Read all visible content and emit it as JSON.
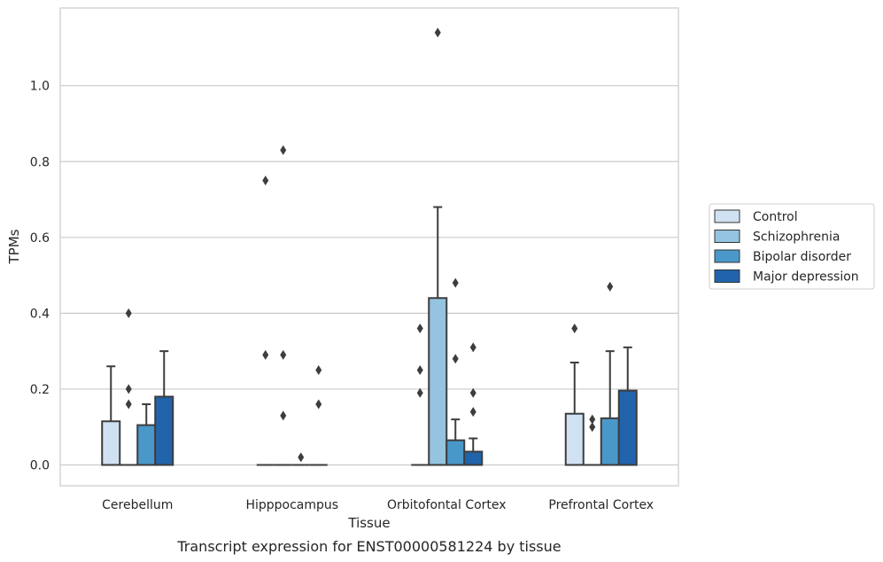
{
  "caption": "Transcript expression for ENST00000581224 by tissue",
  "chart_data": {
    "type": "box",
    "xlabel": "Tissue",
    "ylabel": "TPMs",
    "ylim": [
      -0.055,
      1.205
    ],
    "yticks": [
      "0.0",
      "0.2",
      "0.4",
      "0.6",
      "0.8",
      "1.0"
    ],
    "grid": "horizontal",
    "legend_position": "right",
    "categories": [
      "Cerebellum",
      "Hipppocampus",
      "Orbitofontal Cortex",
      "Prefrontal Cortex"
    ],
    "series": [
      {
        "name": "Control",
        "color": "#d0e1f2",
        "boxes": [
          {
            "q1": 0.0,
            "median": 0.0,
            "q3": 0.115,
            "whisker_low": 0.0,
            "whisker_high": 0.26,
            "outliers": []
          },
          {
            "q1": 0.0,
            "median": 0.0,
            "q3": 0.0,
            "whisker_low": 0.0,
            "whisker_high": 0.0,
            "outliers": [
              0.29,
              0.75
            ]
          },
          {
            "q1": 0.0,
            "median": 0.0,
            "q3": 0.0,
            "whisker_low": 0.0,
            "whisker_high": 0.0,
            "outliers": [
              0.19,
              0.25,
              0.36
            ]
          },
          {
            "q1": 0.0,
            "median": 0.0,
            "q3": 0.135,
            "whisker_low": 0.0,
            "whisker_high": 0.27,
            "outliers": [
              0.36
            ]
          }
        ]
      },
      {
        "name": "Schizophrenia",
        "color": "#94c4df",
        "boxes": [
          {
            "q1": 0.0,
            "median": 0.0,
            "q3": 0.0,
            "whisker_low": 0.0,
            "whisker_high": 0.0,
            "outliers": [
              0.16,
              0.2,
              0.4
            ]
          },
          {
            "q1": 0.0,
            "median": 0.0,
            "q3": 0.0,
            "whisker_low": 0.0,
            "whisker_high": 0.0,
            "outliers": [
              0.13,
              0.29,
              0.83
            ]
          },
          {
            "q1": 0.0,
            "median": 0.0,
            "q3": 0.44,
            "whisker_low": 0.0,
            "whisker_high": 0.68,
            "outliers": [
              1.14
            ]
          },
          {
            "q1": 0.0,
            "median": 0.0,
            "q3": 0.0,
            "whisker_low": 0.0,
            "whisker_high": 0.0,
            "outliers": [
              0.1,
              0.12
            ]
          }
        ]
      },
      {
        "name": "Bipolar disorder",
        "color": "#4a98c9",
        "boxes": [
          {
            "q1": 0.0,
            "median": 0.0,
            "q3": 0.105,
            "whisker_low": 0.0,
            "whisker_high": 0.16,
            "outliers": []
          },
          {
            "q1": 0.0,
            "median": 0.0,
            "q3": 0.0,
            "whisker_low": 0.0,
            "whisker_high": 0.0,
            "outliers": [
              0.02
            ]
          },
          {
            "q1": 0.0,
            "median": 0.0,
            "q3": 0.065,
            "whisker_low": 0.0,
            "whisker_high": 0.12,
            "outliers": [
              0.28,
              0.48
            ]
          },
          {
            "q1": 0.0,
            "median": 0.0,
            "q3": 0.123,
            "whisker_low": 0.0,
            "whisker_high": 0.3,
            "outliers": [
              0.47
            ]
          }
        ]
      },
      {
        "name": "Major depression",
        "color": "#2164ab",
        "boxes": [
          {
            "q1": 0.0,
            "median": 0.0,
            "q3": 0.18,
            "whisker_low": 0.0,
            "whisker_high": 0.3,
            "outliers": []
          },
          {
            "q1": 0.0,
            "median": 0.0,
            "q3": 0.0,
            "whisker_low": 0.0,
            "whisker_high": 0.0,
            "outliers": [
              0.16,
              0.25
            ]
          },
          {
            "q1": 0.0,
            "median": 0.0,
            "q3": 0.035,
            "whisker_low": 0.0,
            "whisker_high": 0.07,
            "outliers": [
              0.14,
              0.19,
              0.31
            ]
          },
          {
            "q1": 0.0,
            "median": 0.0,
            "q3": 0.196,
            "whisker_low": 0.0,
            "whisker_high": 0.31,
            "outliers": []
          }
        ]
      }
    ]
  }
}
